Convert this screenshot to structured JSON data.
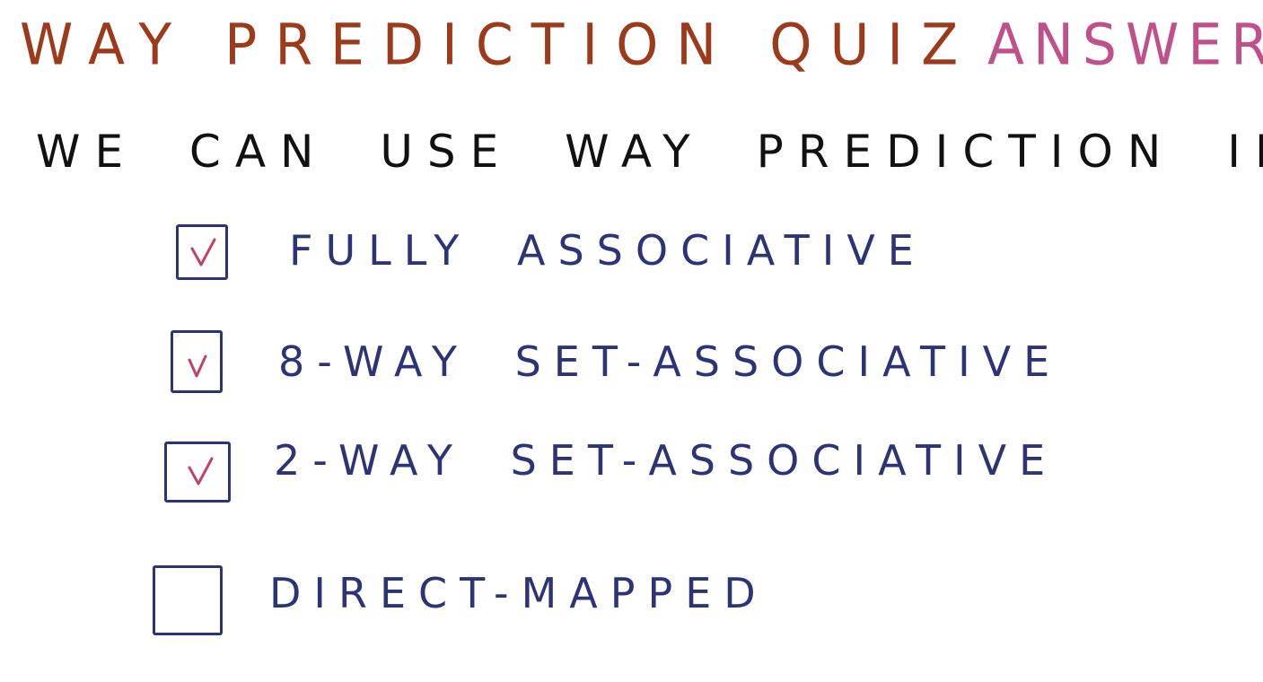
{
  "colors": {
    "title": "#9c3a1c",
    "answer": "#c0508a",
    "question": "#111111",
    "options": "#2d3476",
    "checkmark": "#c0406e"
  },
  "title": {
    "main": "WAY PREDICTION QUIZ",
    "answer": "ANSWER"
  },
  "question": "WE CAN USE WAY PREDICTION IN",
  "options": [
    {
      "label": "FULLY ASSOCIATIVE",
      "checked": true
    },
    {
      "label": "8-WAY SET-ASSOCIATIVE",
      "checked": true
    },
    {
      "label": "2-WAY SET-ASSOCIATIVE",
      "checked": true
    },
    {
      "label": "DIRECT-MAPPED",
      "checked": false
    }
  ]
}
